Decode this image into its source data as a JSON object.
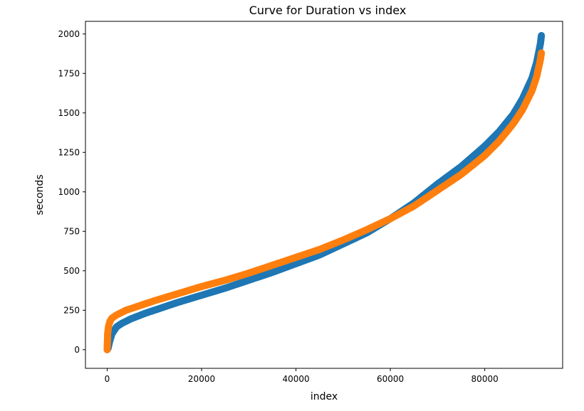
{
  "chart_data": {
    "type": "scatter",
    "title": "Curve for Duration vs index",
    "xlabel": "index",
    "ylabel": "seconds",
    "xlim": [
      -4600,
      96500
    ],
    "ylim": [
      -118,
      2080
    ],
    "xticks": [
      0,
      20000,
      40000,
      60000,
      80000
    ],
    "xtick_labels": [
      "0",
      "20000",
      "40000",
      "60000",
      "80000"
    ],
    "yticks": [
      0,
      250,
      500,
      750,
      1000,
      1250,
      1500,
      1750,
      2000
    ],
    "ytick_labels": [
      "0",
      "250",
      "500",
      "750",
      "1000",
      "1250",
      "1500",
      "1750",
      "2000"
    ],
    "grid": false,
    "series": [
      {
        "name": "series-1",
        "color": "#1f77b4",
        "x": [
          0,
          200,
          500,
          1000,
          2000,
          3000,
          5000,
          8000,
          10000,
          15000,
          20000,
          25000,
          30000,
          35000,
          40000,
          45000,
          50000,
          55000,
          60000,
          65000,
          70000,
          75000,
          80000,
          83000,
          86000,
          88000,
          90000,
          91000,
          91800,
          92000
        ],
        "values": [
          0,
          10,
          50,
          100,
          145,
          165,
          195,
          230,
          250,
          300,
          345,
          390,
          440,
          490,
          545,
          600,
          670,
          740,
          830,
          930,
          1050,
          1160,
          1290,
          1380,
          1490,
          1590,
          1720,
          1820,
          1940,
          1990
        ]
      },
      {
        "name": "series-2",
        "color": "#ff7f0e",
        "x": [
          0,
          100,
          300,
          600,
          1000,
          2000,
          4000,
          6000,
          10000,
          15000,
          20000,
          25000,
          30000,
          35000,
          40000,
          45000,
          50000,
          55000,
          60000,
          65000,
          70000,
          75000,
          80000,
          83000,
          86000,
          88000,
          90000,
          91000,
          91800,
          92000
        ],
        "values": [
          0,
          100,
          150,
          180,
          200,
          220,
          250,
          270,
          310,
          355,
          400,
          440,
          485,
          535,
          585,
          635,
          695,
          760,
          830,
          910,
          1010,
          1110,
          1230,
          1320,
          1430,
          1520,
          1640,
          1730,
          1840,
          1880
        ]
      }
    ]
  }
}
